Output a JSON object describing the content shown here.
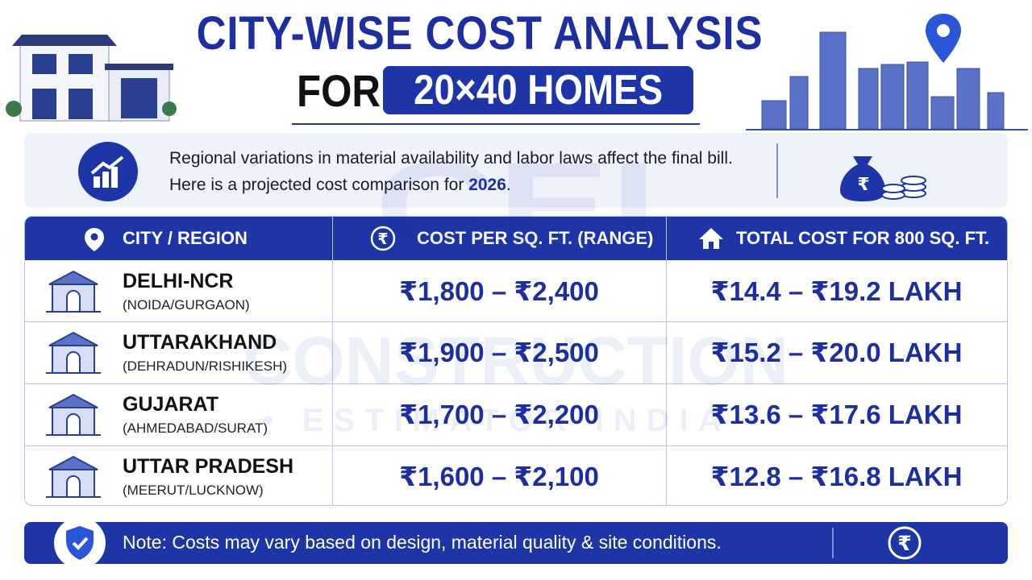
{
  "header": {
    "title_line1": "CITY-WISE COST ANALYSIS",
    "title_prefix": "FOR",
    "title_highlight": "20×40 HOMES"
  },
  "intro": {
    "text": "Regional variations in material availability and labor laws affect the final bill. Here is a projected cost comparison for",
    "year": "2026",
    "end": "."
  },
  "table": {
    "headers": [
      "CITY / REGION",
      "COST PER SQ. FT. (RANGE)",
      "TOTAL COST FOR 800 SQ. FT."
    ],
    "rows": [
      {
        "city": "DELHI-NCR",
        "areas": "(NOIDA/GURGAON)",
        "cost_per_sqft": "₹1,800 – ₹2,400",
        "total": "₹14.4 – ₹19.2 LAKH"
      },
      {
        "city": "UTTARAKHAND",
        "areas": "(DEHRADUN/RISHIKESH)",
        "cost_per_sqft": "₹1,900 – ₹2,500",
        "total": "₹15.2 – ₹20.0 LAKH"
      },
      {
        "city": "GUJARAT",
        "areas": "(AHMEDABAD/SURAT)",
        "cost_per_sqft": "₹1,700 – ₹2,200",
        "total": "₹13.6 – ₹17.6 LAKH"
      },
      {
        "city": "UTTAR PRADESH",
        "areas": "(MEERUT/LUCKNOW)",
        "cost_per_sqft": "₹1,600 – ₹2,100",
        "total": "₹12.8 – ₹16.8 LAKH"
      }
    ]
  },
  "note": "Note: Costs may vary based on design, material quality & site conditions.",
  "watermark": {
    "logo": "CEI",
    "line1": "CONSTRUCTION",
    "line2": "• ESTIMATOR INDIA •"
  }
}
